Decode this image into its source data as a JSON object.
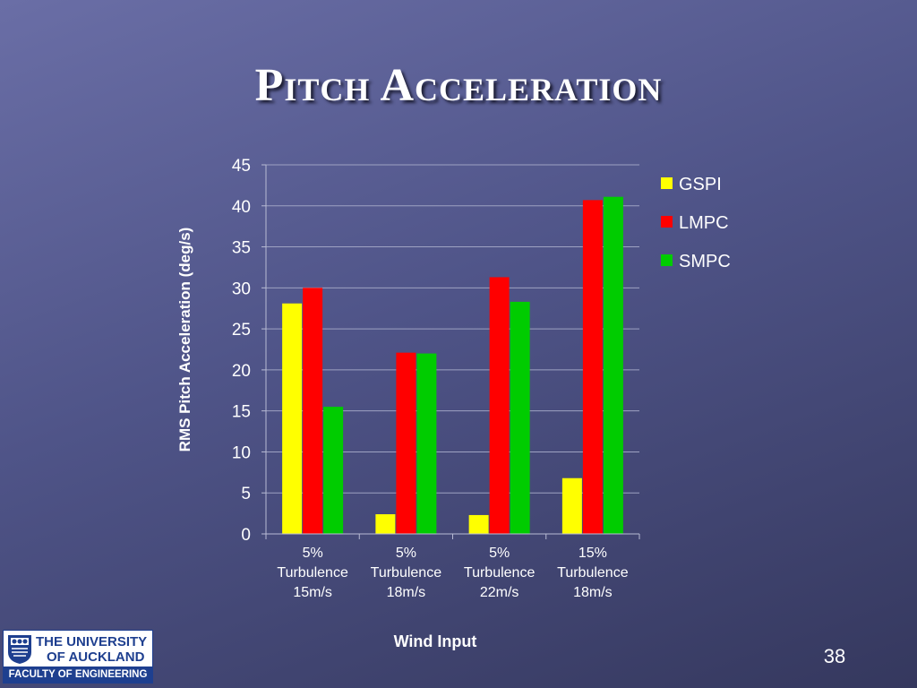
{
  "slide": {
    "title": "Pitch Acceleration",
    "page_number": "38"
  },
  "logo": {
    "line1": "THE UNIVERSITY",
    "line2": "OF AUCKLAND",
    "footer": "FACULTY OF ENGINEERING",
    "accent_color": "#1e3f8f"
  },
  "chart_data": {
    "type": "bar",
    "xlabel": "Wind Input",
    "ylabel": "RMS Pitch Acceleration (deg/s)",
    "ylim": [
      0,
      45
    ],
    "yticks": [
      0,
      5,
      10,
      15,
      20,
      25,
      30,
      35,
      40,
      45
    ],
    "grid": true,
    "legend_position": "right",
    "categories": [
      [
        "5%",
        "Turbulence",
        "15m/s"
      ],
      [
        "5%",
        "Turbulence",
        "18m/s"
      ],
      [
        "5%",
        "Turbulence",
        "22m/s"
      ],
      [
        "15%",
        "Turbulence",
        "18m/s"
      ]
    ],
    "series": [
      {
        "name": "GSPI",
        "color": "#ffff00",
        "values": [
          28.1,
          2.4,
          2.3,
          6.8
        ]
      },
      {
        "name": "LMPC",
        "color": "#ff0000",
        "values": [
          30.0,
          22.1,
          31.3,
          40.7
        ]
      },
      {
        "name": "SMPC",
        "color": "#00cc00",
        "values": [
          15.5,
          22.0,
          28.3,
          41.1
        ]
      }
    ]
  }
}
